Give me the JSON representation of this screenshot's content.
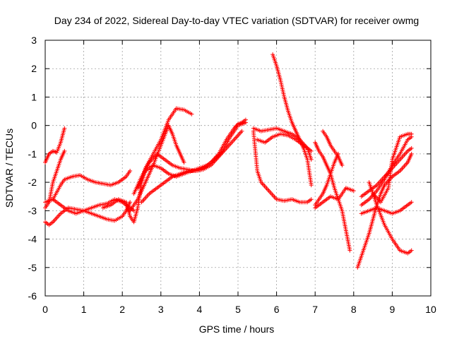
{
  "chart_data": {
    "type": "scatter",
    "title": "Day 234 of 2022, Sidereal Day-to-day VTEC variation (SDTVAR) for receiver owmg",
    "xlabel": "GPS time / hours",
    "ylabel": "SDTVAR / TECUs",
    "xlim": [
      0,
      10
    ],
    "ylim": [
      -6,
      3
    ],
    "xticks": [
      0,
      1,
      2,
      3,
      4,
      5,
      6,
      7,
      8,
      9,
      10
    ],
    "yticks": [
      -6,
      -5,
      -4,
      -3,
      -2,
      -1,
      0,
      1,
      2,
      3
    ],
    "grid": true,
    "marker": "+",
    "color": "#ff0000",
    "series": [
      {
        "name": "s1",
        "x": [
          0.0,
          0.1,
          0.2,
          0.3,
          0.4,
          0.5
        ],
        "y": [
          -1.3,
          -1.0,
          -0.9,
          -0.95,
          -0.6,
          -0.1
        ]
      },
      {
        "name": "s2",
        "x": [
          0.0,
          0.1,
          0.2,
          0.3,
          0.4,
          0.5
        ],
        "y": [
          -2.9,
          -2.7,
          -2.0,
          -1.6,
          -1.2,
          -0.9
        ]
      },
      {
        "name": "s3",
        "x": [
          0.0,
          0.1,
          0.2,
          0.4,
          0.6,
          0.8,
          1.0,
          1.2,
          1.4,
          1.6,
          1.8,
          2.0,
          2.1,
          2.2
        ],
        "y": [
          -3.4,
          -3.5,
          -3.4,
          -3.1,
          -2.9,
          -2.95,
          -3.0,
          -3.1,
          -3.2,
          -3.3,
          -3.35,
          -3.2,
          -3.0,
          -2.7
        ]
      },
      {
        "name": "s4",
        "x": [
          0.0,
          0.2,
          0.4,
          0.6,
          0.8,
          1.0,
          1.2,
          1.4,
          1.6,
          1.8,
          2.0,
          2.2,
          2.3
        ],
        "y": [
          -2.7,
          -2.6,
          -2.8,
          -3.0,
          -3.1,
          -3.0,
          -2.9,
          -2.8,
          -2.75,
          -2.6,
          -2.7,
          -2.9,
          -3.0
        ]
      },
      {
        "name": "s5",
        "x": [
          0.2,
          0.4,
          0.5,
          0.7,
          0.9,
          1.1,
          1.3,
          1.5,
          1.7,
          1.9,
          2.1,
          2.2
        ],
        "y": [
          -2.6,
          -2.1,
          -1.9,
          -1.8,
          -1.75,
          -1.9,
          -2.0,
          -2.05,
          -2.1,
          -2.0,
          -1.8,
          -1.6
        ]
      },
      {
        "name": "s6",
        "x": [
          1.5,
          1.7,
          1.9,
          2.1,
          2.2,
          2.3,
          2.4,
          2.5,
          2.6,
          2.8,
          3.0,
          3.2,
          3.4,
          3.6,
          3.8
        ],
        "y": [
          -2.9,
          -2.8,
          -2.6,
          -2.7,
          -3.2,
          -3.4,
          -2.9,
          -2.0,
          -1.5,
          -1.0,
          -0.5,
          0.2,
          0.6,
          0.55,
          0.4
        ]
      },
      {
        "name": "s7",
        "x": [
          2.2,
          2.4,
          2.6,
          2.8,
          3.0,
          3.2,
          3.3,
          3.4,
          3.5,
          3.6
        ],
        "y": [
          -3.0,
          -2.6,
          -2.0,
          -1.4,
          -0.7,
          0.0,
          -0.3,
          -0.7,
          -1.0,
          -1.3
        ]
      },
      {
        "name": "s8",
        "x": [
          2.3,
          2.5,
          2.7,
          2.9,
          3.1,
          3.3,
          3.5,
          3.7,
          3.9,
          4.1,
          4.3,
          4.5,
          4.7,
          4.9,
          5.0,
          5.1,
          5.2
        ],
        "y": [
          -2.4,
          -1.8,
          -1.3,
          -1.0,
          -1.2,
          -1.4,
          -1.5,
          -1.55,
          -1.6,
          -1.5,
          -1.3,
          -1.0,
          -0.5,
          -0.1,
          0.05,
          0.1,
          0.2
        ]
      },
      {
        "name": "s9",
        "x": [
          2.4,
          2.6,
          2.8,
          3.0,
          3.2,
          3.4,
          3.6,
          3.8,
          4.0,
          4.2,
          4.4,
          4.6,
          4.8,
          5.0,
          5.2
        ],
        "y": [
          -2.2,
          -1.6,
          -1.4,
          -1.5,
          -1.7,
          -1.8,
          -1.7,
          -1.6,
          -1.5,
          -1.4,
          -1.2,
          -0.9,
          -0.4,
          0.0,
          0.1
        ]
      },
      {
        "name": "s10",
        "x": [
          2.5,
          2.7,
          2.9,
          3.1,
          3.3,
          3.5,
          3.7,
          3.9,
          4.1,
          4.3,
          4.5,
          4.7,
          4.9,
          5.1
        ],
        "y": [
          -2.7,
          -2.4,
          -2.2,
          -2.0,
          -1.8,
          -1.7,
          -1.6,
          -1.6,
          -1.55,
          -1.4,
          -1.1,
          -0.8,
          -0.5,
          -0.2
        ]
      },
      {
        "name": "s11",
        "x": [
          5.4,
          5.5,
          5.6,
          5.8,
          6.0,
          6.2,
          6.4,
          6.6,
          6.8,
          6.9
        ],
        "y": [
          -0.2,
          -1.6,
          -2.0,
          -2.3,
          -2.6,
          -2.65,
          -2.6,
          -2.7,
          -2.7,
          -2.6
        ]
      },
      {
        "name": "s12",
        "x": [
          5.5,
          5.7,
          5.9,
          6.1,
          6.3,
          6.5,
          6.7,
          6.9
        ],
        "y": [
          -0.5,
          -0.6,
          -0.4,
          -0.3,
          -0.35,
          -0.5,
          -0.7,
          -0.9
        ]
      },
      {
        "name": "s13",
        "x": [
          5.4,
          5.6,
          5.8,
          6.0,
          6.2,
          6.4,
          6.6,
          6.8,
          6.9
        ],
        "y": [
          -0.1,
          -0.2,
          -0.15,
          -0.1,
          -0.2,
          -0.3,
          -0.5,
          -0.8,
          -1.2
        ]
      },
      {
        "name": "s14",
        "x": [
          5.9,
          6.0,
          6.1,
          6.2,
          6.3,
          6.4,
          6.5,
          6.6,
          6.7,
          6.8,
          6.9
        ],
        "y": [
          2.5,
          2.1,
          1.6,
          1.0,
          0.5,
          0.1,
          -0.2,
          -0.5,
          -0.8,
          -1.2,
          -2.1
        ]
      },
      {
        "name": "s15",
        "x": [
          7.0,
          7.1,
          7.2,
          7.3,
          7.4,
          7.5,
          7.6,
          7.7,
          7.8,
          7.9
        ],
        "y": [
          -0.6,
          -0.9,
          -1.1,
          -1.4,
          -1.7,
          -2.2,
          -2.6,
          -3.0,
          -3.7,
          -4.4
        ]
      },
      {
        "name": "s16",
        "x": [
          7.0,
          7.1,
          7.2,
          7.3,
          7.4,
          7.5,
          7.6
        ],
        "y": [
          -2.8,
          -2.6,
          -2.4,
          -2.1,
          -1.7,
          -1.3,
          -1.0
        ]
      },
      {
        "name": "s17",
        "x": [
          7.2,
          7.3,
          7.4,
          7.5,
          7.6,
          7.7
        ],
        "y": [
          -0.2,
          -0.4,
          -0.7,
          -0.9,
          -1.1,
          -1.4
        ]
      },
      {
        "name": "s18",
        "x": [
          7.0,
          7.2,
          7.4,
          7.6,
          7.8,
          8.0
        ],
        "y": [
          -2.9,
          -2.7,
          -2.5,
          -2.6,
          -2.2,
          -2.3
        ]
      },
      {
        "name": "s19",
        "x": [
          8.1,
          8.2,
          8.3,
          8.4,
          8.5,
          8.6,
          8.7,
          8.8,
          9.0,
          9.2,
          9.4,
          9.5
        ],
        "y": [
          -5.0,
          -4.6,
          -4.2,
          -3.8,
          -3.3,
          -2.8,
          -2.4,
          -2.1,
          -1.8,
          -1.6,
          -1.3,
          -1.0
        ]
      },
      {
        "name": "s20",
        "x": [
          8.2,
          8.4,
          8.6,
          8.8,
          9.0,
          9.2,
          9.4,
          9.5
        ],
        "y": [
          -2.5,
          -2.3,
          -2.1,
          -1.8,
          -1.5,
          -1.2,
          -0.9,
          -0.8
        ]
      },
      {
        "name": "s21",
        "x": [
          8.2,
          8.4,
          8.6,
          8.8,
          9.0,
          9.2,
          9.4,
          9.5
        ],
        "y": [
          -2.8,
          -2.6,
          -2.3,
          -1.9,
          -1.4,
          -1.0,
          -0.5,
          -0.4
        ]
      },
      {
        "name": "s22",
        "x": [
          8.2,
          8.4,
          8.6,
          8.8,
          9.0,
          9.2,
          9.4,
          9.5
        ],
        "y": [
          -3.1,
          -3.0,
          -2.9,
          -3.0,
          -3.1,
          -3.0,
          -2.8,
          -2.7
        ]
      },
      {
        "name": "s23",
        "x": [
          8.4,
          8.6,
          8.8,
          9.0,
          9.2,
          9.4,
          9.5
        ],
        "y": [
          -2.0,
          -2.8,
          -3.5,
          -4.0,
          -4.4,
          -4.5,
          -4.4
        ]
      },
      {
        "name": "s24",
        "x": [
          8.5,
          8.7,
          8.9,
          9.0,
          9.2,
          9.4,
          9.5
        ],
        "y": [
          -2.4,
          -2.7,
          -2.2,
          -1.2,
          -0.4,
          -0.3,
          -0.3
        ]
      }
    ]
  }
}
